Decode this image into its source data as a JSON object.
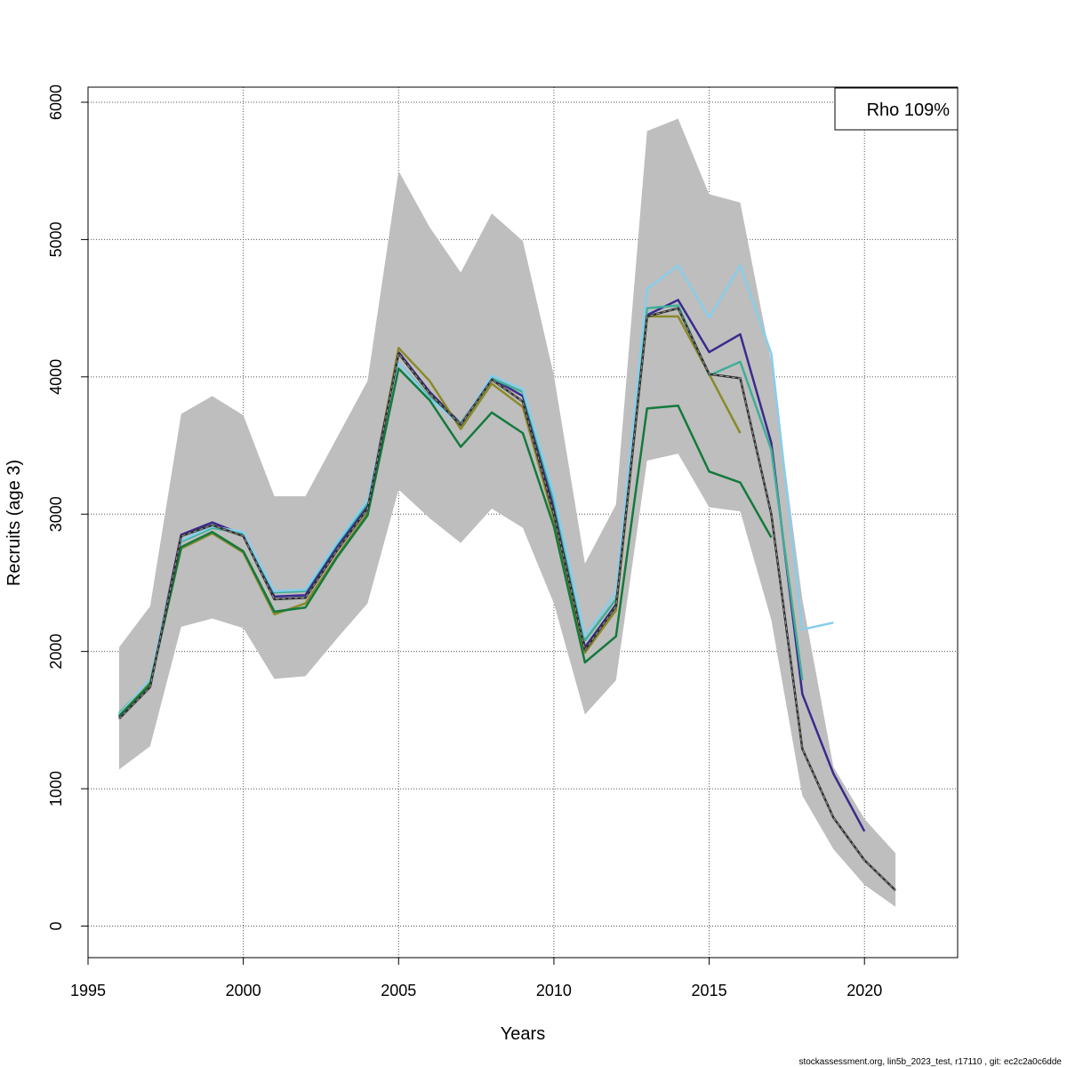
{
  "chart_data": {
    "type": "line",
    "xlabel": "Years",
    "ylabel": "Recruits (age 3)",
    "xlim": [
      1995,
      2023
    ],
    "ylim": [
      -230,
      6110
    ],
    "x_ticks": [
      1995,
      2000,
      2005,
      2010,
      2015,
      2020
    ],
    "y_ticks": [
      0,
      1000,
      2000,
      3000,
      4000,
      5000,
      6000
    ],
    "grid": true,
    "legend": {
      "text": "Rho 109%",
      "position": "top-right"
    },
    "confidence_band": {
      "color": "#bebebe",
      "x": [
        1996,
        1997,
        1998,
        1999,
        2000,
        2001,
        2002,
        2003,
        2004,
        2005,
        2006,
        2007,
        2008,
        2009,
        2010,
        2011,
        2012,
        2013,
        2014,
        2015,
        2016,
        2017,
        2018,
        2019,
        2020,
        2021
      ],
      "upper": [
        2030,
        2330,
        3730,
        3860,
        3720,
        3130,
        3130,
        3550,
        3970,
        5500,
        5090,
        4760,
        5190,
        4990,
        4010,
        2640,
        3070,
        5790,
        5880,
        5330,
        5270,
        4110,
        2380,
        1160,
        780,
        530
      ],
      "lower": [
        1140,
        1310,
        2180,
        2240,
        2170,
        1800,
        1820,
        2090,
        2350,
        3180,
        2970,
        2790,
        3040,
        2900,
        2350,
        1540,
        1790,
        3390,
        3440,
        3050,
        3020,
        2230,
        950,
        560,
        300,
        140
      ]
    },
    "series": [
      {
        "color": "#2e2e2e",
        "dashed": true,
        "x": [
          1996,
          1997,
          1998,
          1999,
          2000,
          2001,
          2002,
          2003,
          2004,
          2005,
          2006,
          2007,
          2008,
          2009,
          2010,
          2011,
          2012,
          2013,
          2014,
          2015,
          2016,
          2017,
          2018,
          2019,
          2020,
          2021
        ],
        "values": [
          1510,
          1740,
          2840,
          2920,
          2840,
          2380,
          2390,
          2730,
          3040,
          4170,
          3880,
          3650,
          3980,
          3820,
          3000,
          2010,
          2330,
          4440,
          4500,
          4020,
          3990,
          3000,
          1290,
          790,
          480,
          260
        ]
      },
      {
        "color": "#3a2a8e",
        "x": [
          1996,
          1997,
          1998,
          1999,
          2000,
          2001,
          2002,
          2003,
          2004,
          2005,
          2006,
          2007,
          2008,
          2009,
          2010,
          2011,
          2012,
          2013,
          2014,
          2015,
          2016,
          2017,
          2018,
          2019,
          2020
        ],
        "values": [
          1520,
          1770,
          2850,
          2940,
          2850,
          2400,
          2410,
          2760,
          3060,
          4180,
          3890,
          3660,
          3990,
          3860,
          3040,
          2030,
          2340,
          4450,
          4560,
          4180,
          4310,
          3520,
          1690,
          1110,
          690
        ]
      },
      {
        "color": "#3fae97",
        "x": [
          1996,
          1997,
          1998,
          1999,
          2000,
          2001,
          2002,
          2003,
          2004,
          2005,
          2006,
          2007,
          2008,
          2009,
          2010,
          2011,
          2012,
          2013,
          2014,
          2015,
          2016,
          2017,
          2018
        ],
        "values": [
          1550,
          1790,
          2800,
          2900,
          2860,
          2430,
          2440,
          2780,
          3080,
          4100,
          3850,
          3660,
          3990,
          3890,
          3100,
          2080,
          2380,
          4500,
          4520,
          4010,
          4110,
          3470,
          1790
        ]
      },
      {
        "color": "#87ceeb",
        "x": [
          1996,
          1997,
          1998,
          1999,
          2000,
          2001,
          2002,
          2003,
          2004,
          2005,
          2006,
          2007,
          2008,
          2009,
          2010,
          2011,
          2012,
          2013,
          2014,
          2015,
          2016,
          2017,
          2018,
          2019
        ],
        "values": [
          1540,
          1800,
          2810,
          2910,
          2870,
          2440,
          2450,
          2790,
          3100,
          4100,
          3840,
          3650,
          4010,
          3910,
          3140,
          2110,
          2430,
          4640,
          4810,
          4430,
          4810,
          4170,
          2160,
          2210
        ]
      },
      {
        "color": "#8a8a2a",
        "x": [
          1996,
          1997,
          1998,
          1999,
          2000,
          2001,
          2002,
          2003,
          2004,
          2005,
          2006,
          2007,
          2008,
          2009,
          2010,
          2011,
          2012,
          2013,
          2014,
          2015,
          2016
        ],
        "values": [
          1530,
          1770,
          2750,
          2860,
          2720,
          2270,
          2350,
          2690,
          3010,
          4210,
          3970,
          3620,
          3950,
          3780,
          2960,
          1990,
          2300,
          4440,
          4440,
          4020,
          3590
        ]
      },
      {
        "color": "#137a3c",
        "x": [
          1996,
          1997,
          1998,
          1999,
          2000,
          2001,
          2002,
          2003,
          2004,
          2005,
          2006,
          2007,
          2008,
          2009,
          2010,
          2011,
          2012,
          2013,
          2014,
          2015,
          2016,
          2017
        ],
        "values": [
          1530,
          1760,
          2760,
          2870,
          2730,
          2290,
          2320,
          2680,
          2990,
          4060,
          3830,
          3490,
          3740,
          3590,
          2910,
          1920,
          2110,
          3770,
          3790,
          3310,
          3230,
          2830
        ]
      }
    ]
  },
  "footer": {
    "text": "stockassessment.org, lin5b_2023_test, r17110 , git: ec2c2a0c6dde"
  }
}
